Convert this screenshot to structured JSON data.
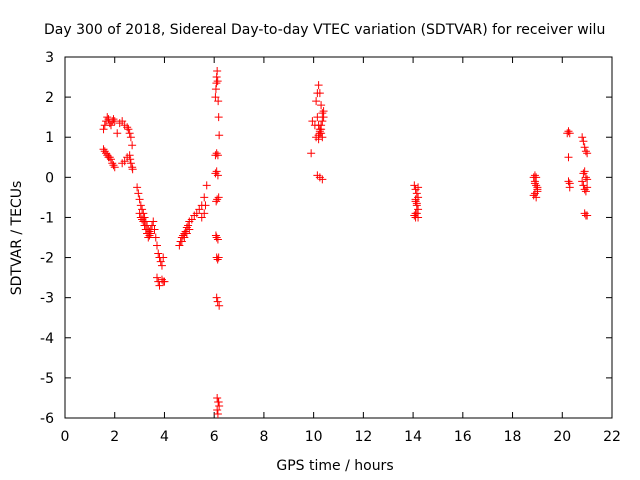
{
  "chart_data": {
    "type": "scatter",
    "title": "Day 300 of 2018, Sidereal Day-to-day VTEC variation (SDTVAR) for receiver wilu",
    "xlabel": "GPS time / hours",
    "ylabel": "SDTVAR / TECUs",
    "xlim": [
      0,
      22
    ],
    "ylim": [
      -6,
      3
    ],
    "xticks": [
      0,
      2,
      4,
      6,
      8,
      10,
      12,
      14,
      16,
      18,
      20,
      22
    ],
    "yticks": [
      -6,
      -5,
      -4,
      -3,
      -2,
      -1,
      0,
      1,
      2,
      3
    ],
    "grid": false,
    "marker": "+",
    "colors": {
      "marker": "#ff0000",
      "axis": "#000000",
      "background": "#ffffff"
    },
    "series": [
      {
        "name": "SDTVAR",
        "x": [
          1.55,
          1.6,
          1.65,
          1.7,
          1.75,
          1.8,
          1.85,
          1.9,
          1.95,
          2.0,
          1.55,
          1.6,
          1.65,
          1.7,
          1.75,
          1.8,
          1.85,
          1.9,
          1.95,
          2.0,
          2.1,
          2.2,
          2.3,
          2.4,
          2.5,
          2.55,
          2.6,
          2.65,
          2.7,
          2.3,
          2.4,
          2.5,
          2.6,
          2.62,
          2.65,
          2.7,
          2.72,
          2.9,
          2.95,
          3.0,
          3.05,
          3.1,
          3.15,
          3.2,
          3.25,
          3.3,
          3.35,
          3.4,
          3.45,
          3.0,
          3.05,
          3.1,
          3.15,
          3.2,
          3.25,
          3.3,
          3.35,
          3.4,
          3.45,
          3.5,
          3.55,
          3.6,
          3.65,
          3.7,
          3.75,
          3.8,
          3.85,
          3.9,
          3.95,
          3.7,
          3.75,
          3.8,
          3.9,
          3.95,
          4.0,
          4.6,
          4.65,
          4.7,
          4.75,
          4.8,
          4.85,
          4.9,
          4.95,
          5.0,
          5.1,
          5.2,
          5.3,
          5.4,
          5.5,
          5.6,
          5.7,
          5.5,
          5.6,
          5.65,
          4.7,
          4.8,
          4.9,
          5.0,
          6.05,
          6.07,
          6.09,
          6.1,
          6.12,
          6.14,
          6.16,
          6.18,
          6.2,
          6.05,
          6.1,
          6.15,
          6.05,
          6.1,
          6.15,
          6.08,
          6.12,
          6.18,
          6.07,
          6.1,
          6.15,
          6.1,
          6.14,
          6.18,
          6.1,
          6.14,
          6.2,
          6.12,
          6.16,
          6.2,
          6.12,
          6.15,
          6.18,
          9.95,
          10.05,
          10.1,
          10.15,
          10.2,
          10.25,
          10.3,
          10.35,
          10.4,
          10.15,
          10.2,
          10.25,
          10.3,
          10.1,
          10.2,
          10.25,
          10.3,
          10.35,
          10.15,
          10.25,
          10.35,
          9.9,
          10.2,
          10.25,
          10.3,
          10.35,
          10.4,
          14.05,
          14.1,
          14.15,
          14.2,
          14.1,
          14.15,
          14.2,
          14.1,
          14.2,
          14.05,
          14.1,
          14.15,
          14.2,
          14.1,
          14.15,
          18.85,
          18.9,
          18.95,
          19.0,
          18.9,
          18.95,
          19.0,
          18.9,
          18.95,
          18.85,
          18.9,
          19.0,
          20.2,
          20.25,
          20.3,
          20.25,
          20.25,
          20.3,
          20.3,
          20.8,
          20.85,
          20.9,
          20.95,
          21.0,
          20.8,
          20.85,
          20.9,
          20.95,
          21.0,
          20.85,
          20.9,
          20.95,
          21.0,
          20.9,
          20.95,
          21.0
        ],
        "y": [
          1.2,
          1.3,
          1.4,
          1.5,
          1.45,
          1.35,
          1.3,
          1.4,
          1.45,
          1.4,
          0.7,
          0.65,
          0.6,
          0.55,
          0.5,
          0.5,
          0.45,
          0.35,
          0.3,
          0.25,
          1.1,
          1.35,
          1.4,
          1.3,
          1.25,
          1.2,
          1.1,
          1.0,
          0.8,
          0.35,
          0.4,
          0.5,
          0.55,
          0.45,
          0.35,
          0.25,
          0.2,
          -0.25,
          -0.4,
          -0.55,
          -0.7,
          -0.8,
          -0.9,
          -1.0,
          -1.1,
          -1.2,
          -1.3,
          -1.35,
          -1.4,
          -0.9,
          -1.0,
          -1.05,
          -1.1,
          -1.2,
          -1.3,
          -1.4,
          -1.5,
          -1.45,
          -1.3,
          -1.2,
          -1.1,
          -1.3,
          -1.5,
          -1.7,
          -1.9,
          -2.0,
          -2.1,
          -2.2,
          -2.0,
          -2.5,
          -2.6,
          -2.7,
          -2.55,
          -2.6,
          -2.6,
          -1.7,
          -1.6,
          -1.5,
          -1.45,
          -1.4,
          -1.35,
          -1.25,
          -1.2,
          -1.1,
          -1.05,
          -0.95,
          -0.9,
          -0.8,
          -0.7,
          -0.5,
          -0.2,
          -1.0,
          -0.9,
          -0.7,
          -1.6,
          -1.5,
          -1.4,
          -1.3,
          2.0,
          2.2,
          2.35,
          2.5,
          2.65,
          2.4,
          1.9,
          1.5,
          1.05,
          0.1,
          0.15,
          0.05,
          0.55,
          0.6,
          0.55,
          -0.6,
          -0.55,
          -0.5,
          -1.45,
          -1.5,
          -1.55,
          -2.0,
          -2.05,
          -2.0,
          -3.0,
          -3.1,
          -3.2,
          -5.5,
          -5.6,
          -5.7,
          -5.8,
          -5.9,
          -5.6,
          1.4,
          1.3,
          1.9,
          2.1,
          2.3,
          2.1,
          1.8,
          1.6,
          1.5,
          1.5,
          1.3,
          1.2,
          1.1,
          1.0,
          1.05,
          1.1,
          1.2,
          1.0,
          0.05,
          0.0,
          -0.05,
          0.6,
          0.95,
          1.15,
          1.3,
          1.4,
          1.65,
          -0.2,
          -0.3,
          -0.4,
          -0.5,
          -0.6,
          -0.7,
          -0.8,
          -0.9,
          -1.0,
          -0.95,
          -1.0,
          -0.9,
          -0.25,
          -0.55,
          -0.65,
          0.0,
          -0.1,
          -0.2,
          -0.3,
          -0.4,
          -0.5,
          -0.35,
          0.05,
          0.0,
          -0.45,
          -0.15,
          -0.25,
          1.1,
          1.15,
          1.1,
          0.5,
          -0.1,
          -0.15,
          -0.25,
          1.0,
          0.9,
          0.75,
          0.65,
          0.6,
          -0.1,
          -0.2,
          -0.3,
          -0.35,
          -0.25,
          0.1,
          0.15,
          0.0,
          -0.05,
          -0.9,
          -0.95,
          -0.95
        ]
      }
    ]
  }
}
